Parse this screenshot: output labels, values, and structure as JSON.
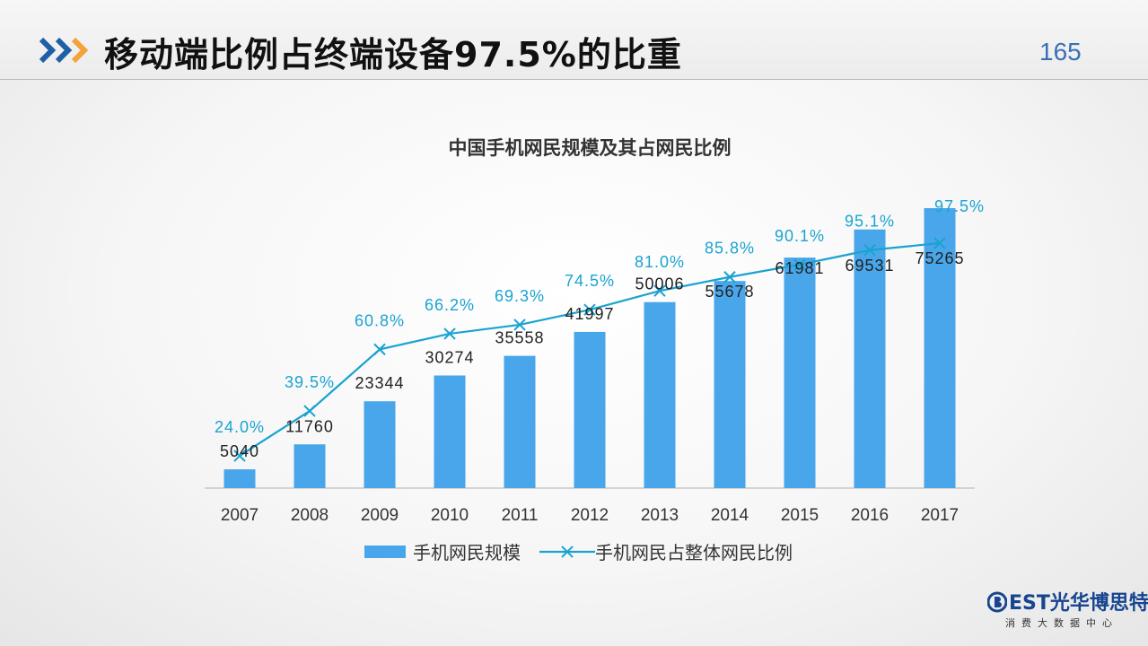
{
  "header": {
    "title": "移动端比例占终端设备97.5%的比重",
    "page_number": "165"
  },
  "logo": {
    "brand": "EST光华博思特",
    "subtitle": "消费大数据中心"
  },
  "colors": {
    "bar": "#4aa6ea",
    "line": "#1aa3d1",
    "pct_label": "#1aa3d1",
    "value_label": "#222222",
    "chevron_blue": "#1f5fa8",
    "chevron_orange": "#f2a33a"
  },
  "chart_data": {
    "type": "bar",
    "title": "中国手机网民规模及其占网民比例",
    "categories": [
      "2007",
      "2008",
      "2009",
      "2010",
      "2011",
      "2012",
      "2013",
      "2014",
      "2015",
      "2016",
      "2017"
    ],
    "series": [
      {
        "name": "手机网民规模",
        "type": "bar",
        "values": [
          5040,
          11760,
          23344,
          30274,
          35558,
          41997,
          50006,
          55678,
          61981,
          69531,
          75265
        ],
        "labels": [
          "5040",
          "11760",
          "23344",
          "30274",
          "35558",
          "41997",
          "50006",
          "55678",
          "61981",
          "69531",
          "75265"
        ]
      },
      {
        "name": "手机网民占整体网民比例",
        "type": "line",
        "marker": "x",
        "values": [
          24.0,
          39.5,
          60.8,
          66.2,
          69.3,
          74.5,
          81.0,
          85.8,
          90.1,
          95.1,
          97.5
        ],
        "labels": [
          "24.0%",
          "39.5%",
          "60.8%",
          "66.2%",
          "69.3%",
          "74.5%",
          "81.0%",
          "85.8%",
          "90.1%",
          "95.1%",
          "97.5%"
        ]
      }
    ],
    "legend": "bottom",
    "grid": false
  }
}
